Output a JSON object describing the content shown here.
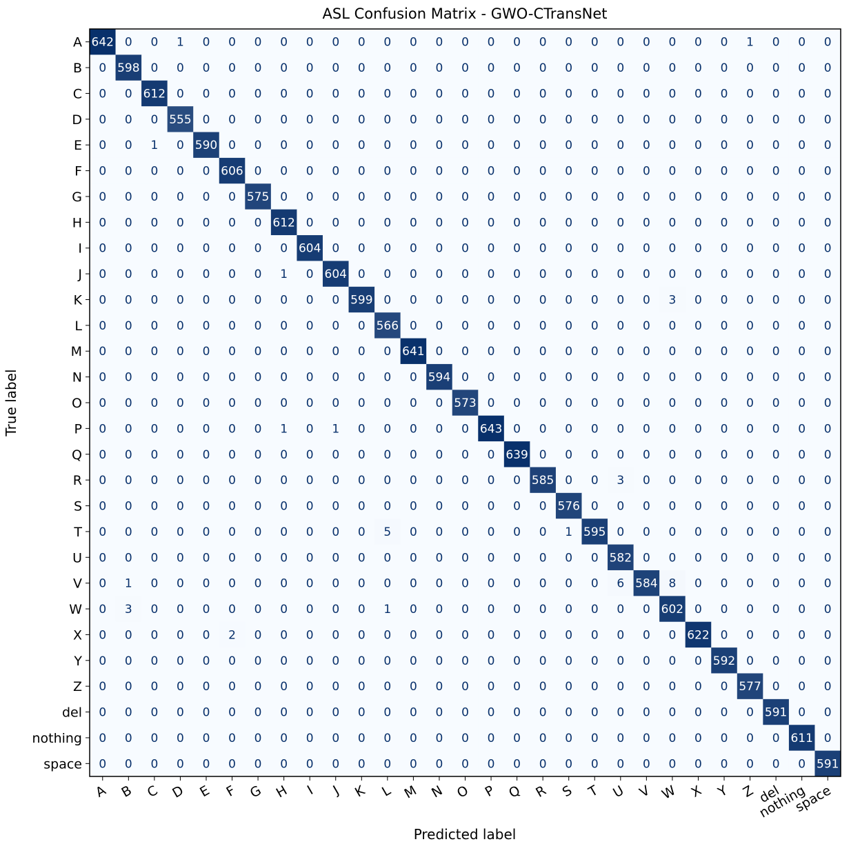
{
  "chart_data": {
    "type": "heatmap",
    "title": "ASL Confusion Matrix - GWO-CTransNet",
    "xlabel": "Predicted label",
    "ylabel": "True label",
    "labels": [
      "A",
      "B",
      "C",
      "D",
      "E",
      "F",
      "G",
      "H",
      "I",
      "J",
      "K",
      "L",
      "M",
      "N",
      "O",
      "P",
      "Q",
      "R",
      "S",
      "T",
      "U",
      "V",
      "W",
      "X",
      "Y",
      "Z",
      "del",
      "nothing",
      "space"
    ],
    "colormap": "Blues",
    "colors": {
      "low": "#f7fbff",
      "high": "#08306b",
      "text_low": "#08306b",
      "text_high": "#ffffff"
    },
    "matrix": [
      [
        642,
        0,
        0,
        1,
        0,
        0,
        0,
        0,
        0,
        0,
        0,
        0,
        0,
        0,
        0,
        0,
        0,
        0,
        0,
        0,
        0,
        0,
        0,
        0,
        0,
        1,
        0,
        0,
        0
      ],
      [
        0,
        598,
        0,
        0,
        0,
        0,
        0,
        0,
        0,
        0,
        0,
        0,
        0,
        0,
        0,
        0,
        0,
        0,
        0,
        0,
        0,
        0,
        0,
        0,
        0,
        0,
        0,
        0,
        0
      ],
      [
        0,
        0,
        612,
        0,
        0,
        0,
        0,
        0,
        0,
        0,
        0,
        0,
        0,
        0,
        0,
        0,
        0,
        0,
        0,
        0,
        0,
        0,
        0,
        0,
        0,
        0,
        0,
        0,
        0
      ],
      [
        0,
        0,
        0,
        555,
        0,
        0,
        0,
        0,
        0,
        0,
        0,
        0,
        0,
        0,
        0,
        0,
        0,
        0,
        0,
        0,
        0,
        0,
        0,
        0,
        0,
        0,
        0,
        0,
        0
      ],
      [
        0,
        0,
        1,
        0,
        590,
        0,
        0,
        0,
        0,
        0,
        0,
        0,
        0,
        0,
        0,
        0,
        0,
        0,
        0,
        0,
        0,
        0,
        0,
        0,
        0,
        0,
        0,
        0,
        0
      ],
      [
        0,
        0,
        0,
        0,
        0,
        606,
        0,
        0,
        0,
        0,
        0,
        0,
        0,
        0,
        0,
        0,
        0,
        0,
        0,
        0,
        0,
        0,
        0,
        0,
        0,
        0,
        0,
        0,
        0
      ],
      [
        0,
        0,
        0,
        0,
        0,
        0,
        575,
        0,
        0,
        0,
        0,
        0,
        0,
        0,
        0,
        0,
        0,
        0,
        0,
        0,
        0,
        0,
        0,
        0,
        0,
        0,
        0,
        0,
        0
      ],
      [
        0,
        0,
        0,
        0,
        0,
        0,
        0,
        612,
        0,
        0,
        0,
        0,
        0,
        0,
        0,
        0,
        0,
        0,
        0,
        0,
        0,
        0,
        0,
        0,
        0,
        0,
        0,
        0,
        0
      ],
      [
        0,
        0,
        0,
        0,
        0,
        0,
        0,
        0,
        604,
        0,
        0,
        0,
        0,
        0,
        0,
        0,
        0,
        0,
        0,
        0,
        0,
        0,
        0,
        0,
        0,
        0,
        0,
        0,
        0
      ],
      [
        0,
        0,
        0,
        0,
        0,
        0,
        0,
        1,
        0,
        604,
        0,
        0,
        0,
        0,
        0,
        0,
        0,
        0,
        0,
        0,
        0,
        0,
        0,
        0,
        0,
        0,
        0,
        0,
        0
      ],
      [
        0,
        0,
        0,
        0,
        0,
        0,
        0,
        0,
        0,
        0,
        599,
        0,
        0,
        0,
        0,
        0,
        0,
        0,
        0,
        0,
        0,
        0,
        3,
        0,
        0,
        0,
        0,
        0,
        0
      ],
      [
        0,
        0,
        0,
        0,
        0,
        0,
        0,
        0,
        0,
        0,
        0,
        566,
        0,
        0,
        0,
        0,
        0,
        0,
        0,
        0,
        0,
        0,
        0,
        0,
        0,
        0,
        0,
        0,
        0
      ],
      [
        0,
        0,
        0,
        0,
        0,
        0,
        0,
        0,
        0,
        0,
        0,
        0,
        641,
        0,
        0,
        0,
        0,
        0,
        0,
        0,
        0,
        0,
        0,
        0,
        0,
        0,
        0,
        0,
        0
      ],
      [
        0,
        0,
        0,
        0,
        0,
        0,
        0,
        0,
        0,
        0,
        0,
        0,
        0,
        594,
        0,
        0,
        0,
        0,
        0,
        0,
        0,
        0,
        0,
        0,
        0,
        0,
        0,
        0,
        0
      ],
      [
        0,
        0,
        0,
        0,
        0,
        0,
        0,
        0,
        0,
        0,
        0,
        0,
        0,
        0,
        573,
        0,
        0,
        0,
        0,
        0,
        0,
        0,
        0,
        0,
        0,
        0,
        0,
        0,
        0
      ],
      [
        0,
        0,
        0,
        0,
        0,
        0,
        0,
        1,
        0,
        1,
        0,
        0,
        0,
        0,
        0,
        643,
        0,
        0,
        0,
        0,
        0,
        0,
        0,
        0,
        0,
        0,
        0,
        0,
        0
      ],
      [
        0,
        0,
        0,
        0,
        0,
        0,
        0,
        0,
        0,
        0,
        0,
        0,
        0,
        0,
        0,
        0,
        639,
        0,
        0,
        0,
        0,
        0,
        0,
        0,
        0,
        0,
        0,
        0,
        0
      ],
      [
        0,
        0,
        0,
        0,
        0,
        0,
        0,
        0,
        0,
        0,
        0,
        0,
        0,
        0,
        0,
        0,
        0,
        585,
        0,
        0,
        3,
        0,
        0,
        0,
        0,
        0,
        0,
        0,
        0
      ],
      [
        0,
        0,
        0,
        0,
        0,
        0,
        0,
        0,
        0,
        0,
        0,
        0,
        0,
        0,
        0,
        0,
        0,
        0,
        576,
        0,
        0,
        0,
        0,
        0,
        0,
        0,
        0,
        0,
        0
      ],
      [
        0,
        0,
        0,
        0,
        0,
        0,
        0,
        0,
        0,
        0,
        0,
        5,
        0,
        0,
        0,
        0,
        0,
        0,
        1,
        595,
        0,
        0,
        0,
        0,
        0,
        0,
        0,
        0,
        0
      ],
      [
        0,
        0,
        0,
        0,
        0,
        0,
        0,
        0,
        0,
        0,
        0,
        0,
        0,
        0,
        0,
        0,
        0,
        0,
        0,
        0,
        582,
        0,
        0,
        0,
        0,
        0,
        0,
        0,
        0
      ],
      [
        0,
        1,
        0,
        0,
        0,
        0,
        0,
        0,
        0,
        0,
        0,
        0,
        0,
        0,
        0,
        0,
        0,
        0,
        0,
        0,
        6,
        584,
        8,
        0,
        0,
        0,
        0,
        0,
        0
      ],
      [
        0,
        3,
        0,
        0,
        0,
        0,
        0,
        0,
        0,
        0,
        0,
        1,
        0,
        0,
        0,
        0,
        0,
        0,
        0,
        0,
        0,
        0,
        602,
        0,
        0,
        0,
        0,
        0,
        0
      ],
      [
        0,
        0,
        0,
        0,
        0,
        2,
        0,
        0,
        0,
        0,
        0,
        0,
        0,
        0,
        0,
        0,
        0,
        0,
        0,
        0,
        0,
        0,
        0,
        622,
        0,
        0,
        0,
        0,
        0
      ],
      [
        0,
        0,
        0,
        0,
        0,
        0,
        0,
        0,
        0,
        0,
        0,
        0,
        0,
        0,
        0,
        0,
        0,
        0,
        0,
        0,
        0,
        0,
        0,
        0,
        592,
        0,
        0,
        0,
        0
      ],
      [
        0,
        0,
        0,
        0,
        0,
        0,
        0,
        0,
        0,
        0,
        0,
        0,
        0,
        0,
        0,
        0,
        0,
        0,
        0,
        0,
        0,
        0,
        0,
        0,
        0,
        577,
        0,
        0,
        0
      ],
      [
        0,
        0,
        0,
        0,
        0,
        0,
        0,
        0,
        0,
        0,
        0,
        0,
        0,
        0,
        0,
        0,
        0,
        0,
        0,
        0,
        0,
        0,
        0,
        0,
        0,
        0,
        591,
        0,
        0
      ],
      [
        0,
        0,
        0,
        0,
        0,
        0,
        0,
        0,
        0,
        0,
        0,
        0,
        0,
        0,
        0,
        0,
        0,
        0,
        0,
        0,
        0,
        0,
        0,
        0,
        0,
        0,
        0,
        611,
        0
      ],
      [
        0,
        0,
        0,
        0,
        0,
        0,
        0,
        0,
        0,
        0,
        0,
        0,
        0,
        0,
        0,
        0,
        0,
        0,
        0,
        0,
        0,
        0,
        0,
        0,
        0,
        0,
        0,
        0,
        591
      ]
    ]
  }
}
